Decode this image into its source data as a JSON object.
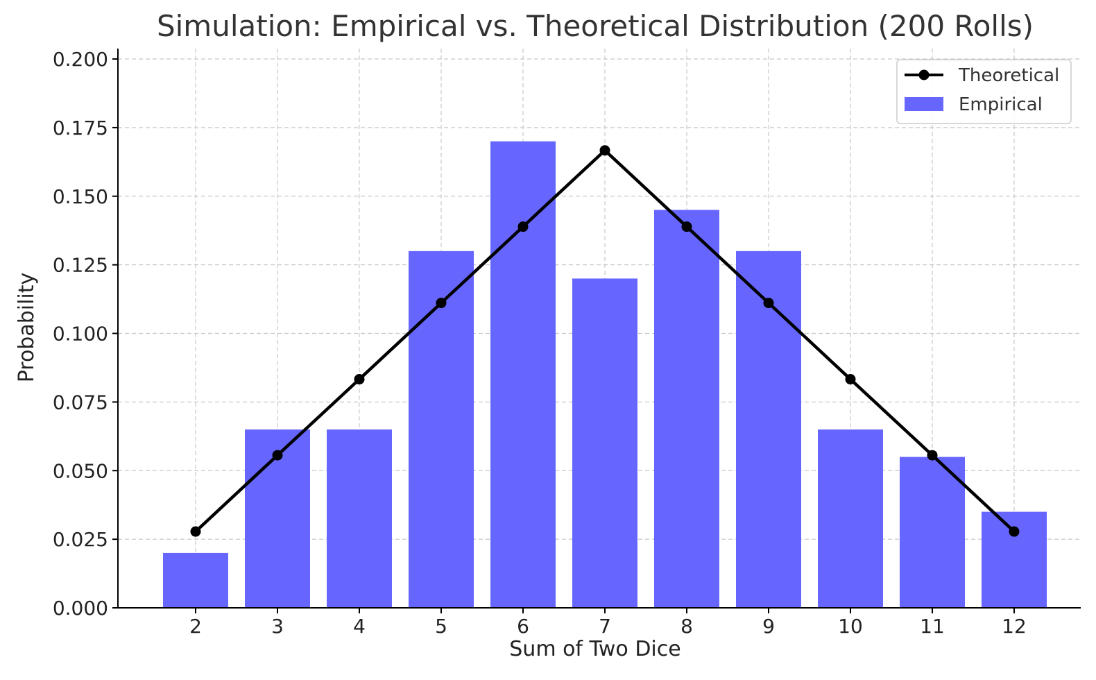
{
  "chart_data": {
    "type": "bar",
    "title": "Simulation: Empirical vs. Theoretical Distribution (200 Rolls)",
    "xlabel": "Sum of Two Dice",
    "ylabel": "Probability",
    "categories": [
      "2",
      "3",
      "4",
      "5",
      "6",
      "7",
      "8",
      "9",
      "10",
      "11",
      "12"
    ],
    "ylim": [
      0,
      0.2038
    ],
    "yticks": [
      "0.000",
      "0.025",
      "0.050",
      "0.075",
      "0.100",
      "0.125",
      "0.150",
      "0.175",
      "0.200"
    ],
    "grid": true,
    "legend_position": "top-right",
    "series": [
      {
        "name": "Theoretical",
        "type": "line",
        "color": "#000000",
        "values": [
          0.0278,
          0.0556,
          0.0833,
          0.1111,
          0.1389,
          0.1667,
          0.1389,
          0.1111,
          0.0833,
          0.0556,
          0.0278
        ]
      },
      {
        "name": "Empirical",
        "type": "bar",
        "color": "#6666ff",
        "values": [
          0.02,
          0.065,
          0.065,
          0.13,
          0.17,
          0.12,
          0.145,
          0.13,
          0.065,
          0.055,
          0.035
        ]
      }
    ]
  }
}
